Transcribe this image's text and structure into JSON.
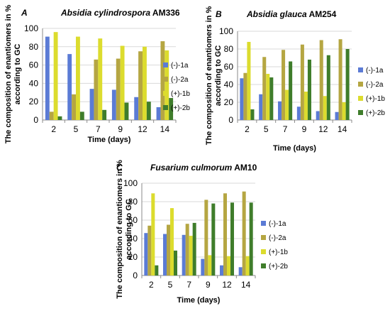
{
  "series_colors": [
    "#5b7bd5",
    "#b5a642",
    "#dcdc2e",
    "#3f7d2b"
  ],
  "chart_data": [
    {
      "type": "bar",
      "panel_letter": "A",
      "title": "Absidia cylindrospora AM336",
      "title_italic": "Absidia cylindrospora",
      "title_plain": " AM336",
      "xlabel": "Time (days)",
      "ylabel_lines": [
        "The composition of enantiomers in %",
        "according to GC"
      ],
      "categories": [
        "2",
        "5",
        "7",
        "9",
        "12",
        "14"
      ],
      "ylim": [
        0,
        100
      ],
      "yticks": [
        0,
        20,
        40,
        60,
        80,
        100
      ],
      "legend_position": "right",
      "series": [
        {
          "name": "(-)-1a",
          "values": [
            91,
            72,
            34,
            33,
            25,
            14
          ]
        },
        {
          "name": "(-)-2a",
          "values": [
            9,
            28,
            66,
            67,
            75,
            86
          ]
        },
        {
          "name": "(+)-1b",
          "values": [
            96,
            91,
            89,
            81,
            80,
            76
          ]
        },
        {
          "name": "(+)-2b",
          "values": [
            4,
            9,
            11,
            19,
            20,
            24
          ]
        }
      ]
    },
    {
      "type": "bar",
      "panel_letter": "B",
      "title": "Absidia glauca AM254",
      "title_italic": "Absidia glauca",
      "title_plain": " AM254",
      "xlabel": "Time (days)",
      "ylabel_lines": [
        "The composition of enantiomers in %",
        "according to GC"
      ],
      "categories": [
        "2",
        "5",
        "7",
        "9",
        "12",
        "14"
      ],
      "ylim": [
        0,
        100
      ],
      "yticks": [
        0,
        20,
        40,
        60,
        80,
        100
      ],
      "legend_position": "right",
      "series": [
        {
          "name": "(-)-1a",
          "values": [
            47,
            29,
            21,
            15,
            10,
            9
          ]
        },
        {
          "name": "(-)-2a",
          "values": [
            53,
            71,
            79,
            85,
            90,
            91
          ]
        },
        {
          "name": "(+)-1b",
          "values": [
            88,
            52,
            34,
            32,
            27,
            20
          ]
        },
        {
          "name": "(+)-2b",
          "values": [
            12,
            48,
            66,
            68,
            73,
            80
          ]
        }
      ]
    },
    {
      "type": "bar",
      "panel_letter": "C",
      "title": "Fusarium culmorum AM10",
      "title_italic": "Fusarium culmorum",
      "title_plain": " AM10",
      "xlabel": "Time (days)",
      "ylabel_lines": [
        "The composition of enantiomers in %",
        "according to GC"
      ],
      "categories": [
        "2",
        "5",
        "7",
        "9",
        "12",
        "14"
      ],
      "ylim": [
        0,
        100
      ],
      "yticks": [
        0,
        20,
        40,
        60,
        80,
        100
      ],
      "legend_position": "right",
      "series": [
        {
          "name": "(-)-1a",
          "values": [
            46,
            45,
            44,
            18,
            11,
            9
          ]
        },
        {
          "name": "(-)-2a",
          "values": [
            54,
            55,
            56,
            82,
            89,
            91
          ]
        },
        {
          "name": "(+)-1b",
          "values": [
            89,
            73,
            43,
            22,
            21,
            21
          ]
        },
        {
          "name": "(+)-2b",
          "values": [
            11,
            27,
            57,
            78,
            79,
            79
          ]
        }
      ]
    }
  ]
}
